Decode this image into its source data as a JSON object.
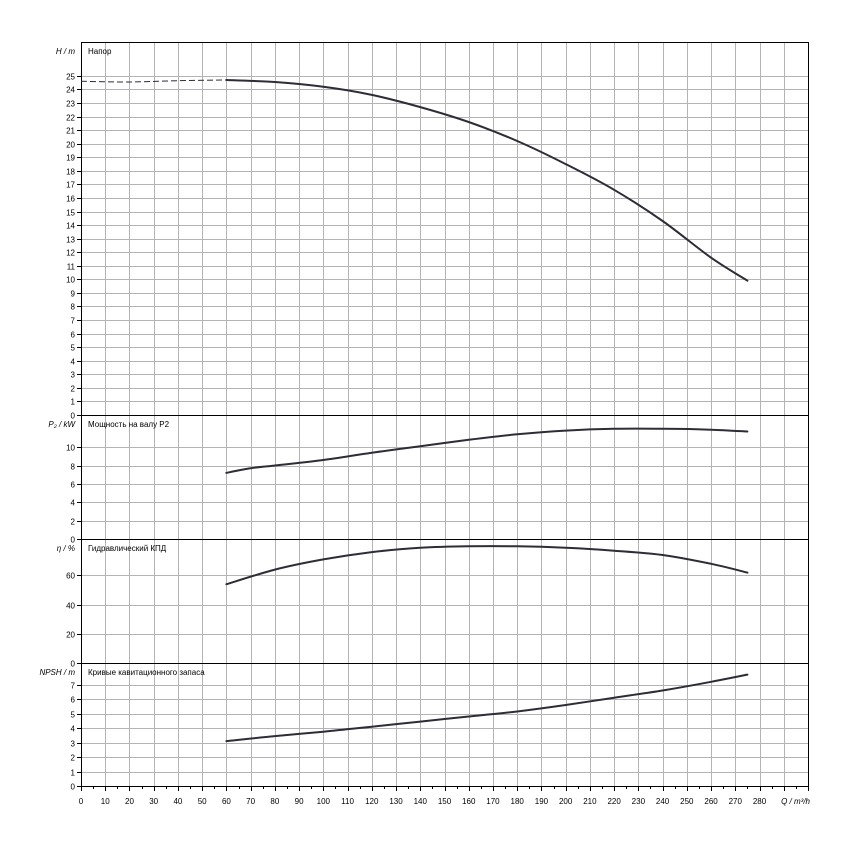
{
  "colors": {
    "curve": "#2d2d37",
    "grid": "#b4b4b4",
    "frame": "#000000",
    "background": "#ffffff"
  },
  "x_axis": {
    "label": "Q / m³/h",
    "range": [
      0,
      300
    ],
    "tick_labels": [
      "0",
      "10",
      "20",
      "30",
      "40",
      "50",
      "60",
      "70",
      "80",
      "90",
      "100",
      "110",
      "120",
      "130",
      "140",
      "150",
      "160",
      "170",
      "180",
      "190",
      "200",
      "210",
      "220",
      "230",
      "240",
      "250",
      "260",
      "270",
      "280"
    ]
  },
  "chart_data": [
    {
      "type": "line",
      "title": "Напор",
      "ylabel": "H / m",
      "ylim": [
        0,
        27.5
      ],
      "y_ticks": [
        0,
        1,
        2,
        3,
        4,
        5,
        6,
        7,
        8,
        9,
        10,
        11,
        12,
        13,
        14,
        15,
        16,
        17,
        18,
        19,
        20,
        21,
        22,
        23,
        24,
        25
      ],
      "grid": true,
      "series": [
        {
          "style": "dashed",
          "x": [
            0,
            20,
            40,
            60
          ],
          "y": [
            24.6,
            24.55,
            24.65,
            24.7
          ]
        },
        {
          "style": "solid",
          "x": [
            60,
            80,
            100,
            120,
            140,
            160,
            180,
            200,
            220,
            240,
            260,
            275
          ],
          "y": [
            24.7,
            24.55,
            24.2,
            23.6,
            22.7,
            21.6,
            20.2,
            18.5,
            16.6,
            14.3,
            11.6,
            9.9
          ]
        }
      ]
    },
    {
      "type": "line",
      "title": "Мощность на валу P2",
      "ylabel": "P₂ / kW",
      "ylim": [
        0,
        13.5
      ],
      "y_ticks": [
        0,
        2,
        4,
        6,
        8,
        10
      ],
      "grid": true,
      "series": [
        {
          "style": "solid",
          "x": [
            60,
            70,
            80,
            100,
            120,
            140,
            160,
            180,
            200,
            220,
            240,
            260,
            275
          ],
          "y": [
            7.2,
            7.7,
            8.0,
            8.6,
            9.4,
            10.1,
            10.8,
            11.4,
            11.8,
            12.0,
            12.0,
            11.9,
            11.7
          ]
        }
      ]
    },
    {
      "type": "line",
      "title": "Гидравлический КПД",
      "ylabel": "η / %",
      "ylim": [
        0,
        85
      ],
      "y_ticks": [
        0,
        20,
        40,
        60
      ],
      "grid": true,
      "series": [
        {
          "style": "solid",
          "x": [
            60,
            80,
            100,
            120,
            140,
            160,
            180,
            200,
            220,
            240,
            260,
            275
          ],
          "y": [
            54,
            64,
            71,
            76,
            79,
            80,
            80,
            79,
            77,
            74,
            68,
            62
          ]
        }
      ]
    },
    {
      "type": "line",
      "title": "Кривые кавитационного запаса",
      "ylabel": "NPSH / m",
      "ylim": [
        0,
        8.5
      ],
      "y_ticks": [
        0,
        1,
        2,
        3,
        4,
        5,
        6,
        7
      ],
      "grid": true,
      "series": [
        {
          "style": "solid",
          "x": [
            60,
            80,
            100,
            120,
            140,
            160,
            180,
            200,
            220,
            240,
            260,
            275
          ],
          "y": [
            3.1,
            3.45,
            3.75,
            4.1,
            4.45,
            4.8,
            5.15,
            5.6,
            6.1,
            6.6,
            7.2,
            7.7
          ]
        }
      ]
    }
  ]
}
